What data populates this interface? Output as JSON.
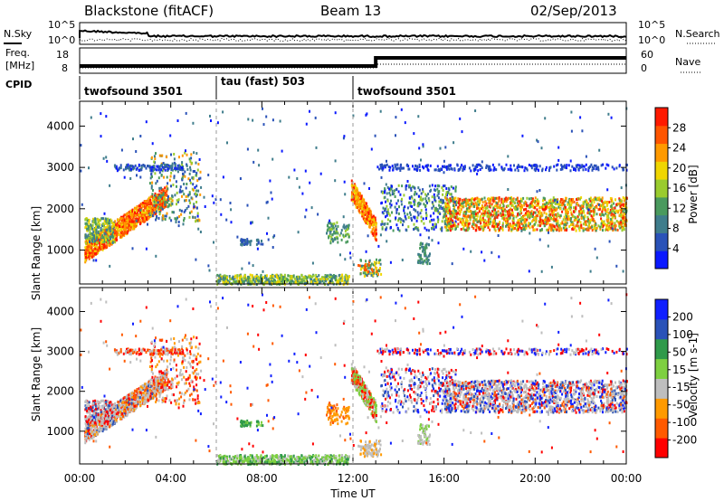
{
  "header": {
    "station": "Blackstone (fitACF)",
    "beam": "Beam 13",
    "date": "02/Sep/2013"
  },
  "noise_panel": {
    "left_label": "N.Sky",
    "right_label": "N.Search",
    "left_ticks": [
      "10^5",
      "10^0"
    ],
    "right_ticks": [
      "10^5",
      "10^0"
    ]
  },
  "freq_panel": {
    "left_label_1": "Freq.",
    "left_label_2": "[MHz]",
    "right_label": "Nave",
    "left_ticks": [
      "18",
      "8"
    ],
    "right_ticks": [
      "60",
      "0"
    ]
  },
  "cpid": {
    "label": "CPID",
    "segments": [
      {
        "name": "twofsound 3501",
        "start_hour": 0,
        "end_hour": 6
      },
      {
        "name": "tau (fast) 503",
        "start_hour": 6,
        "end_hour": 12
      },
      {
        "name": "twofsound 3501",
        "start_hour": 12,
        "end_hour": 24
      }
    ]
  },
  "chart_data": [
    {
      "type": "heatmap",
      "title": "Power",
      "xlabel": "",
      "ylabel": "Slant Range [km]",
      "x_range_hours": [
        0,
        24
      ],
      "ylim": [
        180,
        4600
      ],
      "y_ticks": [
        1000,
        2000,
        3000,
        4000
      ],
      "colorbar": {
        "label": "Power [dB]",
        "ticks": [
          "28",
          "24",
          "20",
          "16",
          "12",
          "8",
          "4"
        ],
        "range": [
          0,
          30
        ],
        "colors": [
          "#0a19ff",
          "#2a52b8",
          "#3f7d8c",
          "#4a9a5e",
          "#9acc2e",
          "#f0d600",
          "#ff9a00",
          "#ff5500",
          "#ff1a00"
        ]
      },
      "echo_regions": [
        {
          "x": [
            0.3,
            3.6
          ],
          "y": [
            800,
            2800
          ],
          "level": "high",
          "note": ""
        },
        {
          "x": [
            3.3,
            5.2
          ],
          "y": [
            1700,
            3500
          ],
          "level": "mid"
        },
        {
          "x": [
            6.0,
            11.8
          ],
          "y": [
            180,
            450
          ],
          "level": "low"
        },
        {
          "x": [
            10.8,
            11.8
          ],
          "y": [
            1200,
            1700
          ],
          "level": "mid"
        },
        {
          "x": [
            11.9,
            13.0
          ],
          "y": [
            1300,
            2700
          ],
          "level": "high"
        },
        {
          "x": [
            13.2,
            16.5
          ],
          "y": [
            1500,
            3100
          ],
          "level": "low"
        },
        {
          "x": [
            16.0,
            24.0
          ],
          "y": [
            1500,
            2300
          ],
          "level": "mid-high"
        }
      ]
    },
    {
      "type": "heatmap",
      "title": "Velocity",
      "xlabel": "Time UT",
      "ylabel": "Slant Range [km]",
      "x_range_hours": [
        0,
        24
      ],
      "x_ticks": [
        "00:00",
        "04:00",
        "08:00",
        "12:00",
        "16:00",
        "20:00",
        "00:00"
      ],
      "ylim": [
        180,
        4600
      ],
      "y_ticks": [
        1000,
        2000,
        3000,
        4000
      ],
      "colorbar": {
        "label": "Velocity [m s-1]",
        "ticks": [
          "200",
          "100",
          "50",
          "15",
          "-15",
          "-50",
          "-100",
          "-200"
        ],
        "range": [
          -250,
          250
        ],
        "colors": [
          "#ff0000",
          "#ff5a00",
          "#ff9a00",
          "#bebebe",
          "#7ed040",
          "#2f9a4a",
          "#2a52b8",
          "#1020ff"
        ]
      }
    }
  ]
}
